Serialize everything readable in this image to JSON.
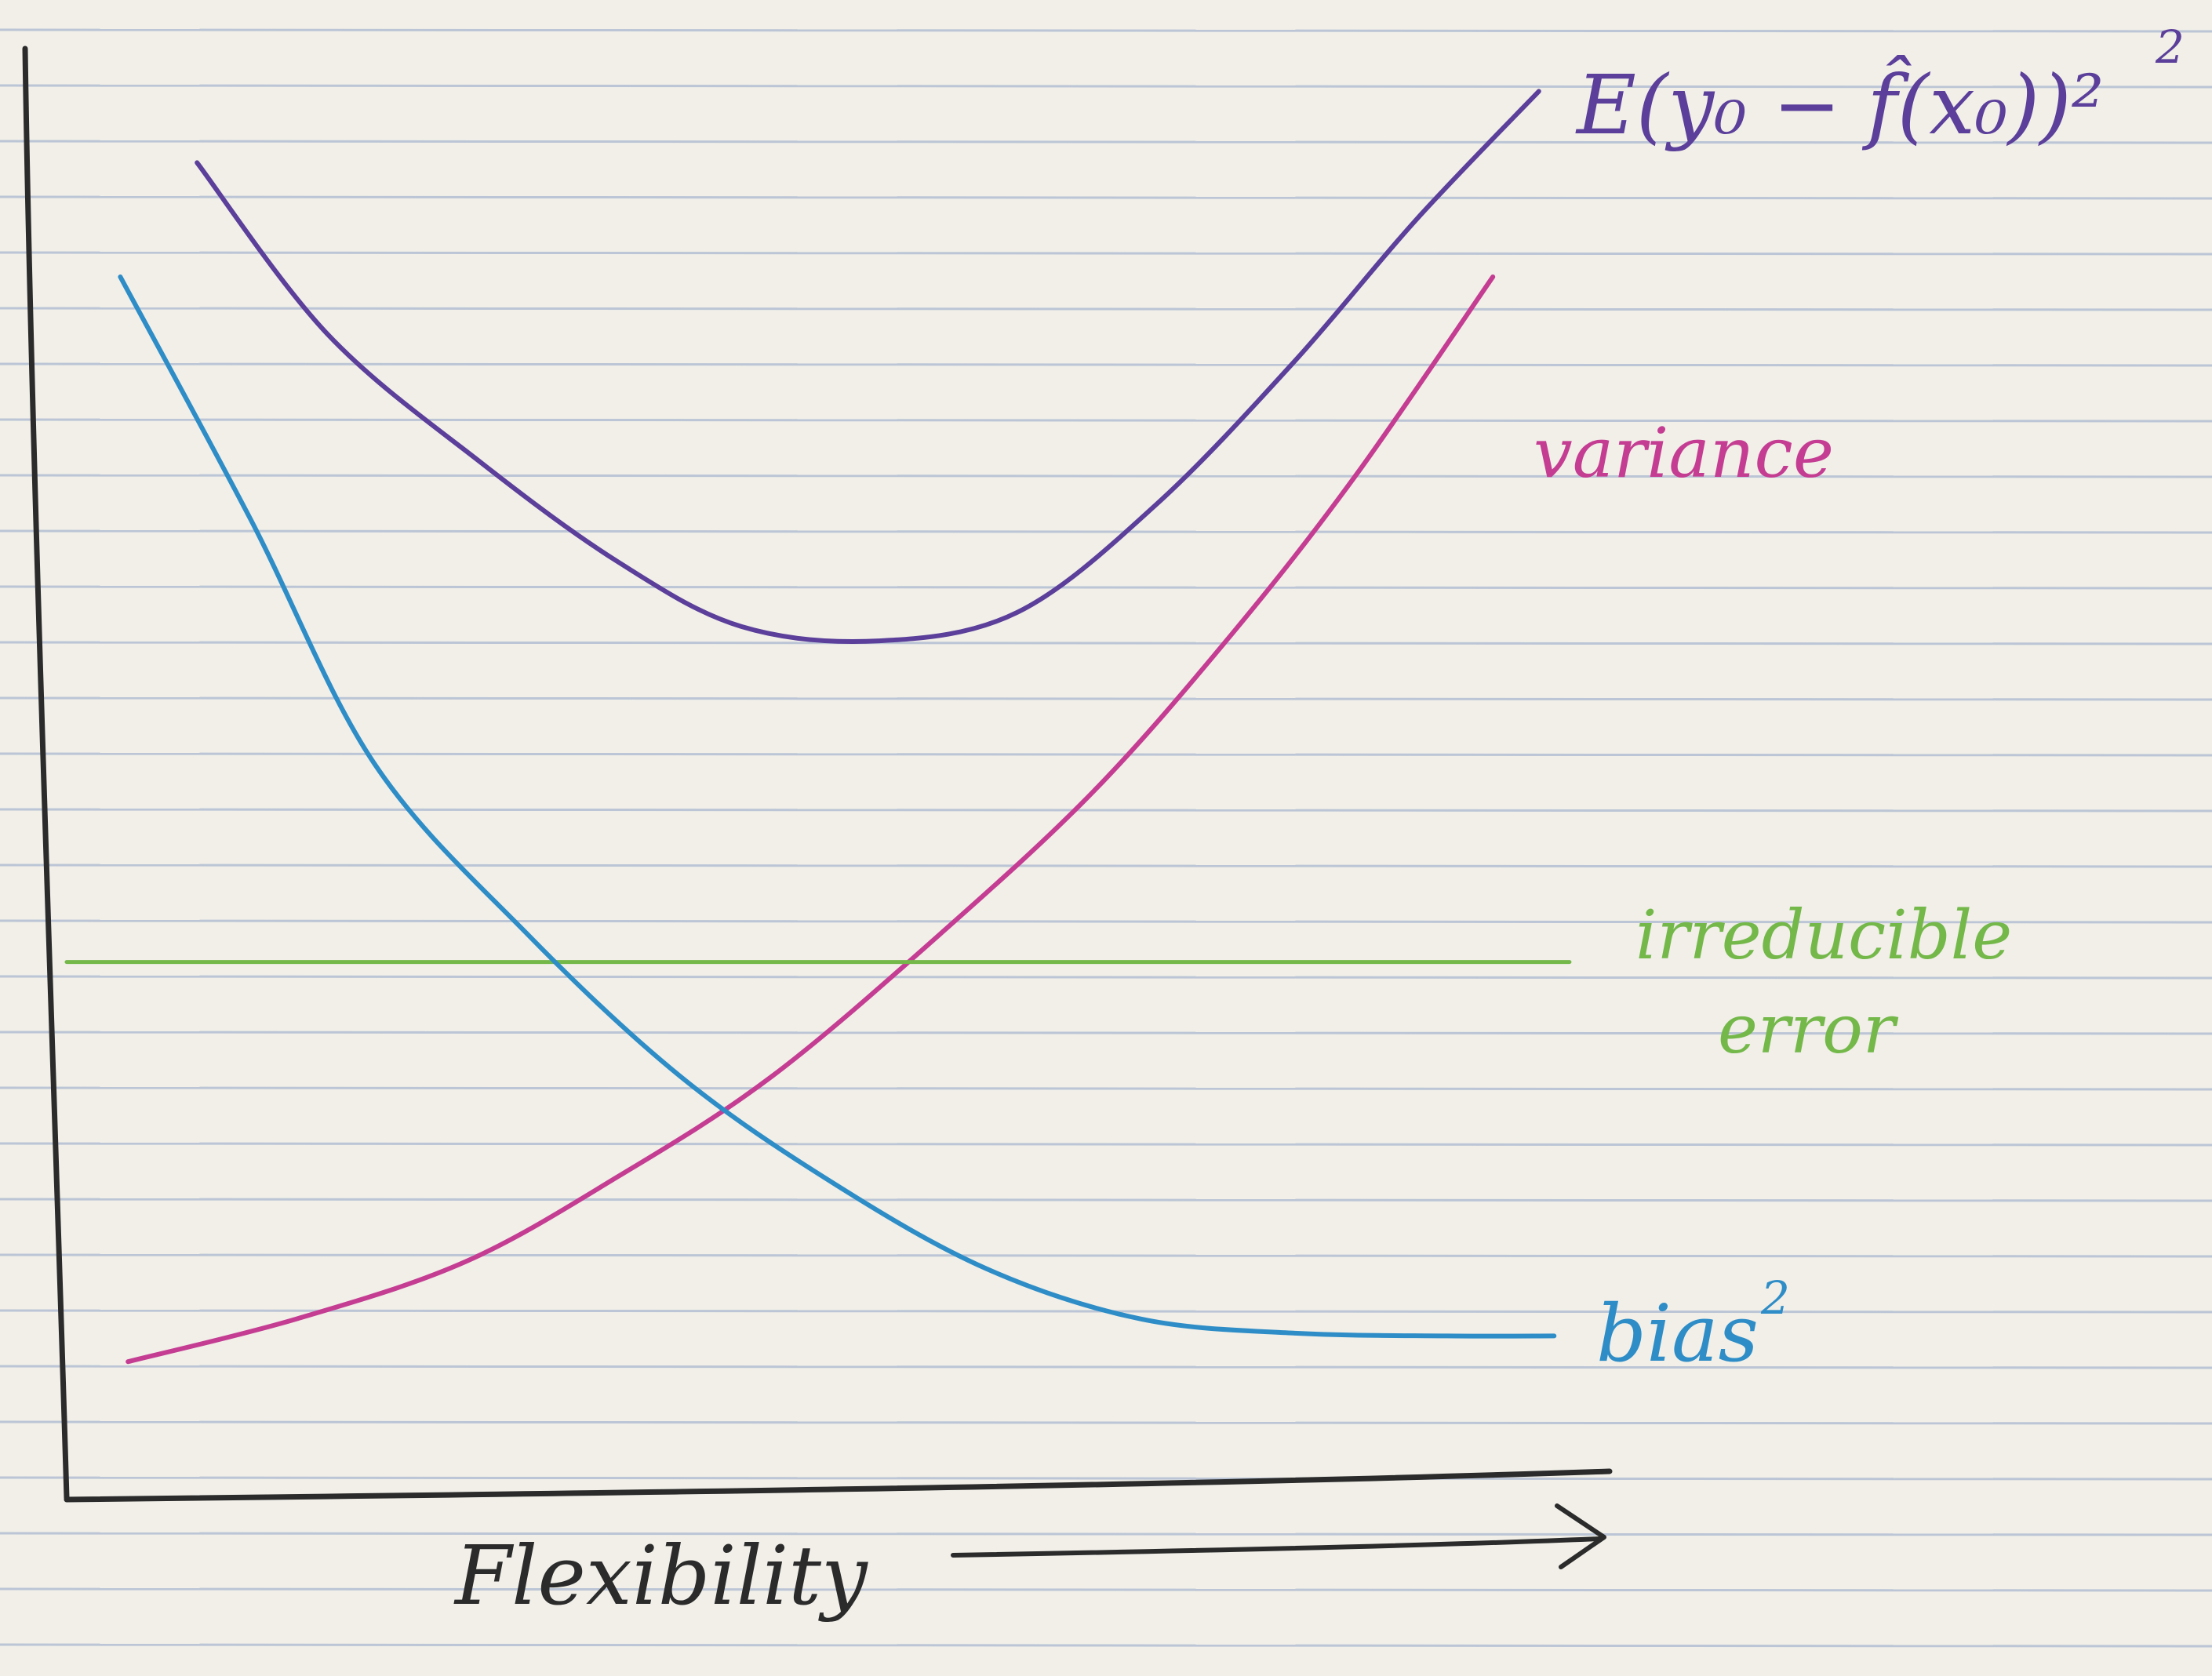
{
  "chart_data": {
    "type": "line",
    "xlabel": "Flexibility",
    "ylabel": "",
    "xlim": [
      0,
      10
    ],
    "ylim": [
      0,
      10
    ],
    "grid": false,
    "legend": "none",
    "series": [
      {
        "name": "E(y₀ − f̂(x₀))²",
        "label_sup": "2",
        "color": "#5b3f9a",
        "x": [
          0.85,
          1.7,
          2.7,
          3.6,
          4.4,
          5.3,
          6.2,
          7.1,
          8.0,
          8.8,
          9.6
        ],
        "y": [
          9.3,
          8.1,
          7.2,
          6.5,
          6.05,
          5.95,
          6.15,
          6.9,
          7.9,
          8.9,
          9.8
        ]
      },
      {
        "name": "variance",
        "color": "#c43d93",
        "x": [
          0.4,
          1.5,
          2.6,
          3.6,
          4.6,
          5.7,
          6.7,
          7.6,
          8.4,
          9.3
        ],
        "y": [
          0.9,
          1.2,
          1.6,
          2.2,
          2.9,
          3.9,
          4.9,
          6.0,
          7.1,
          8.5
        ]
      },
      {
        "name": "irreducible error",
        "color": "#74b84a",
        "x": [
          0,
          9.8
        ],
        "y": [
          3.7,
          3.7
        ]
      },
      {
        "name": "bias²",
        "label_sup": "2",
        "color": "#2e8dc7",
        "x": [
          0.35,
          1.2,
          2.0,
          3.0,
          4.0,
          5.0,
          6.0,
          7.0,
          8.0,
          9.0,
          9.7
        ],
        "y": [
          8.5,
          6.8,
          5.1,
          3.9,
          2.9,
          2.15,
          1.55,
          1.2,
          1.1,
          1.08,
          1.08
        ]
      }
    ]
  },
  "colors": {
    "paper": "#f1efe8",
    "rule": "#8fa3c7",
    "margin": "#d7a3a3",
    "ink": "#2b2b2b",
    "total": "#5b3f9a",
    "variance": "#c43d93",
    "irreducible": "#74b84a",
    "bias": "#2e8dc7"
  }
}
